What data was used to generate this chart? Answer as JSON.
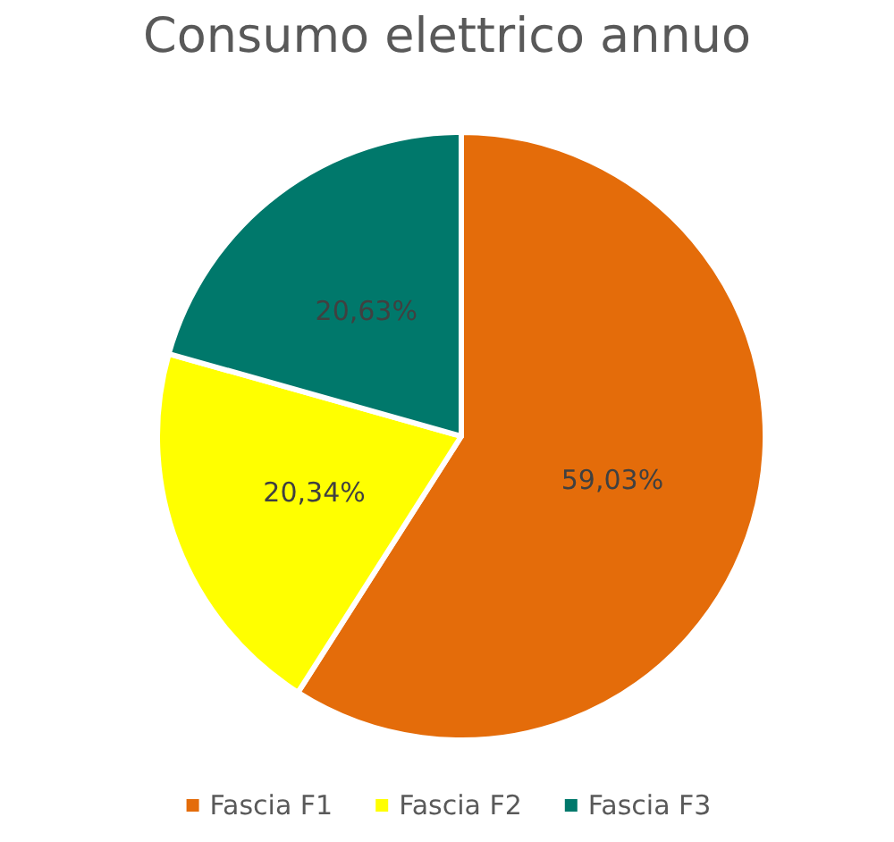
{
  "chart_data": {
    "type": "pie",
    "title": "Consumo elettrico annuo",
    "categories": [
      "Fascia F1",
      "Fascia F2",
      "Fascia F3"
    ],
    "values": [
      59.03,
      20.34,
      20.63
    ],
    "colors": [
      "#e46c0a",
      "#ffff00",
      "#00786b"
    ],
    "value_labels": [
      "59,03%",
      "20,34%",
      "20,63%"
    ],
    "legend": "bottom"
  }
}
